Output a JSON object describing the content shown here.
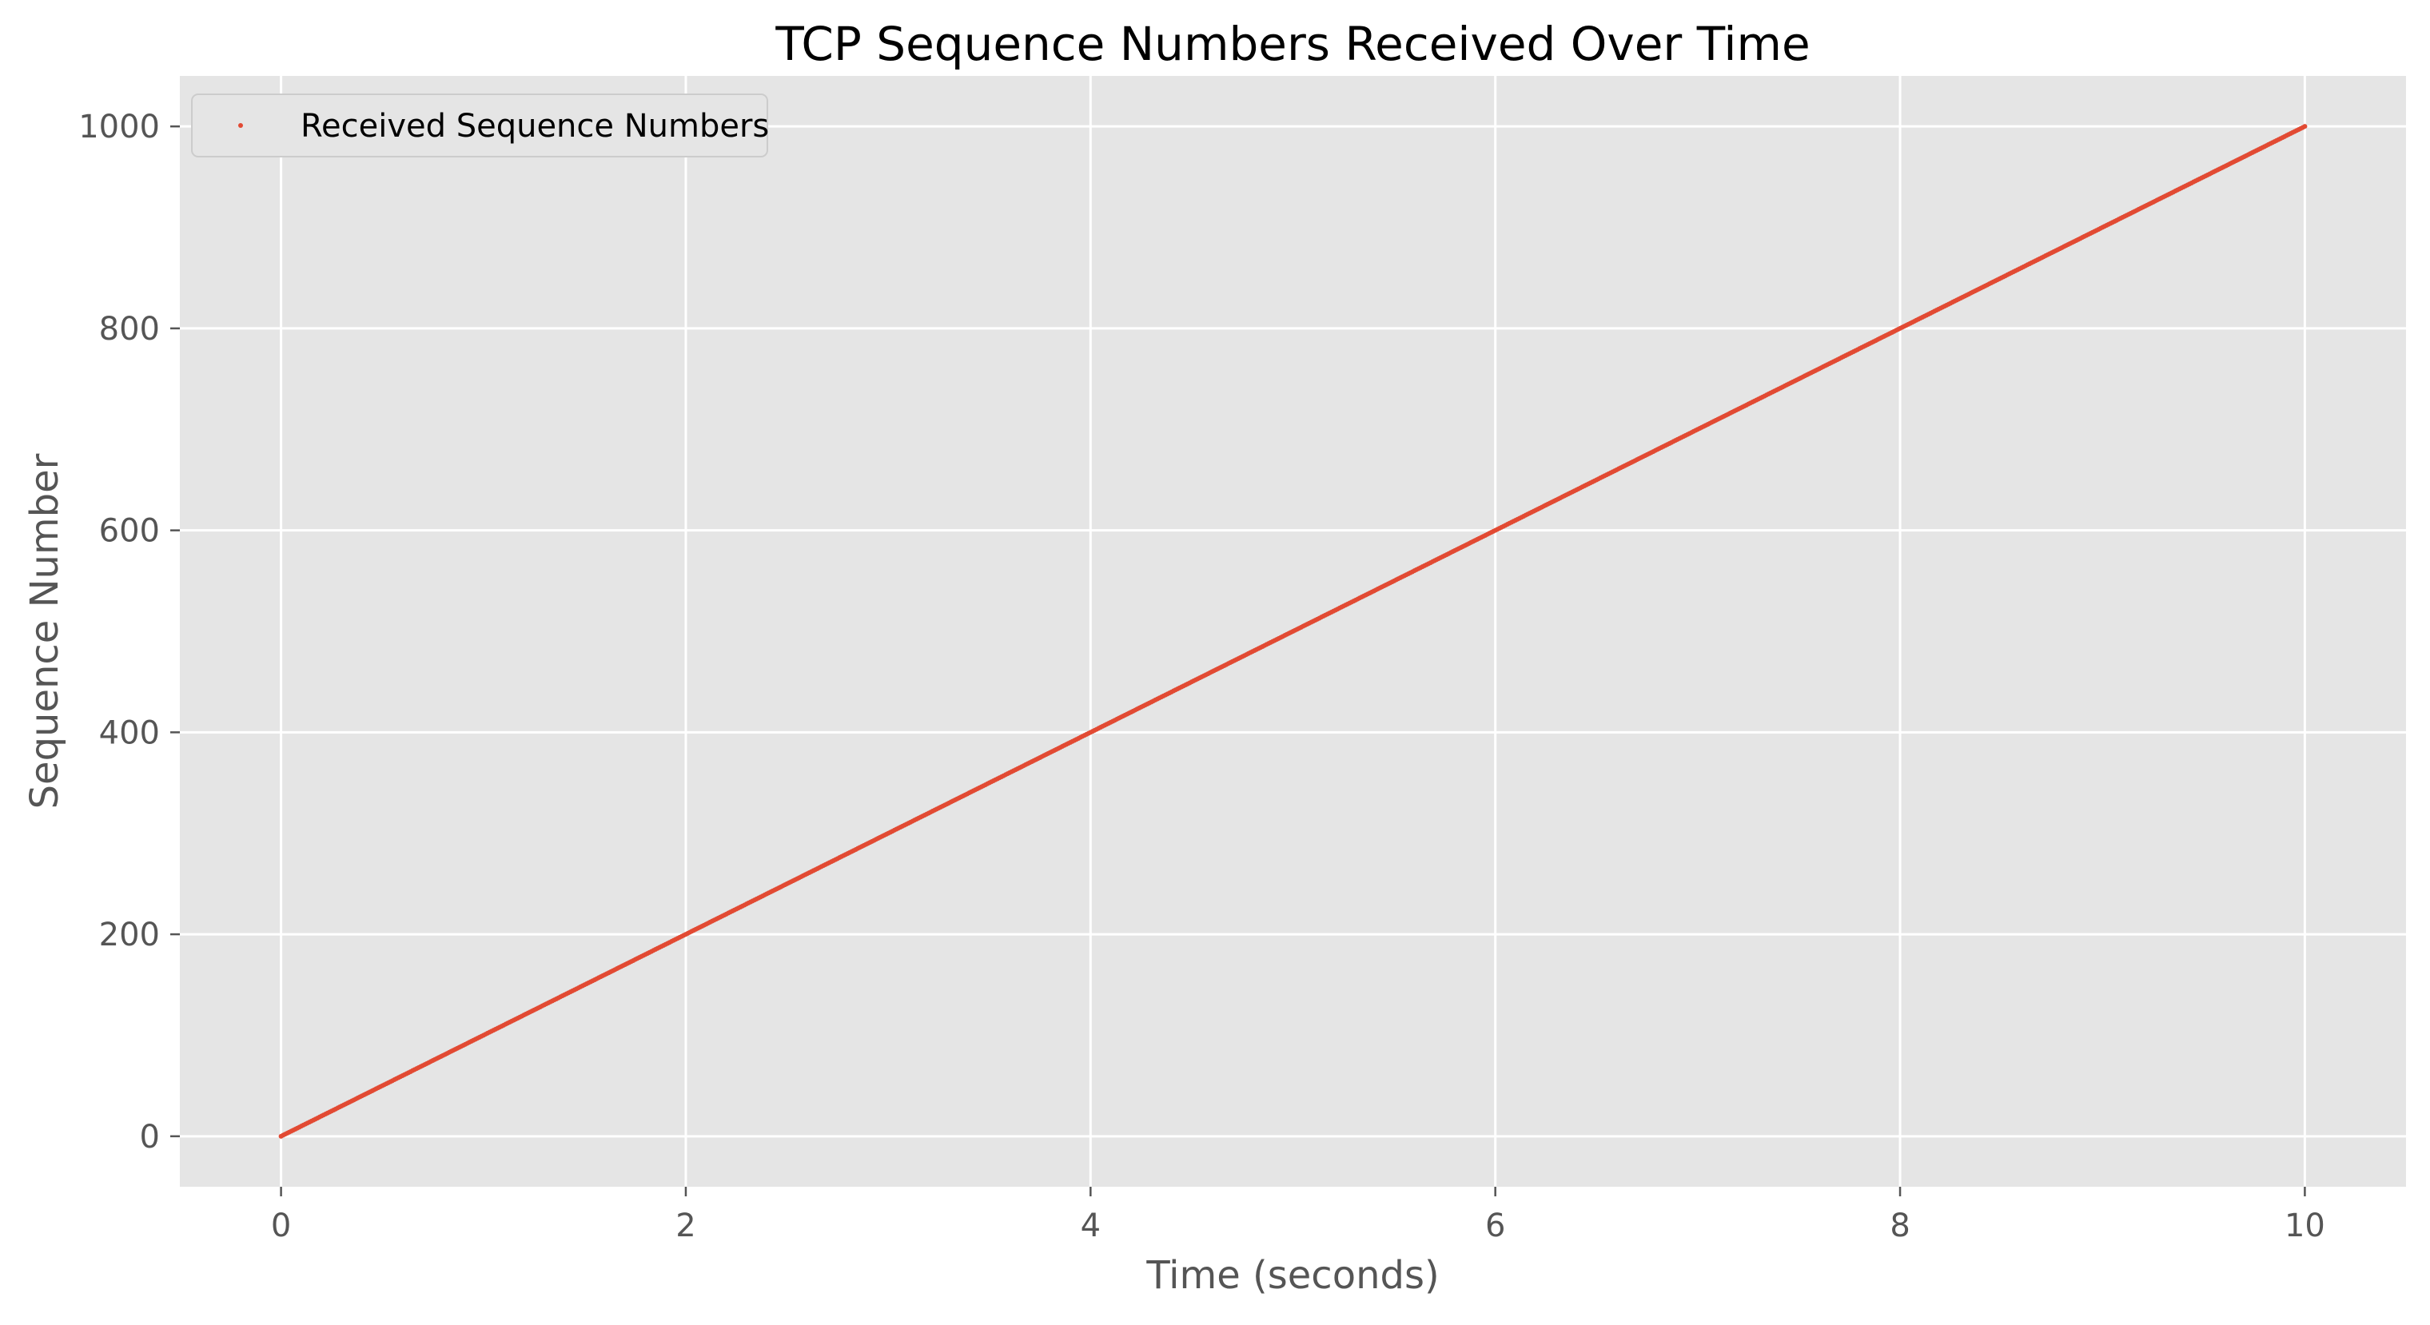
{
  "chart_data": {
    "type": "scatter",
    "title": "TCP Sequence Numbers Received Over Time",
    "xlabel": "Time (seconds)",
    "ylabel": "Sequence Number",
    "xlim": [
      -0.5,
      10.5
    ],
    "ylim": [
      -50,
      1050
    ],
    "x_ticks": [
      0,
      2,
      4,
      6,
      8,
      10
    ],
    "y_ticks": [
      0,
      200,
      400,
      600,
      800,
      1000
    ],
    "grid": true,
    "legend_position": "top-left",
    "series": [
      {
        "name": "Received Sequence Numbers",
        "color": "#E24A33",
        "marker": "point",
        "x_start": 0,
        "x_end": 10,
        "x_step": 0.01,
        "y_per_second": 100,
        "y_start": 0,
        "y_end": 1000
      }
    ],
    "style": {
      "plot_background": "#E5E5E5",
      "grid_color": "#FFFFFF",
      "page_background": "#FFFFFF"
    }
  }
}
